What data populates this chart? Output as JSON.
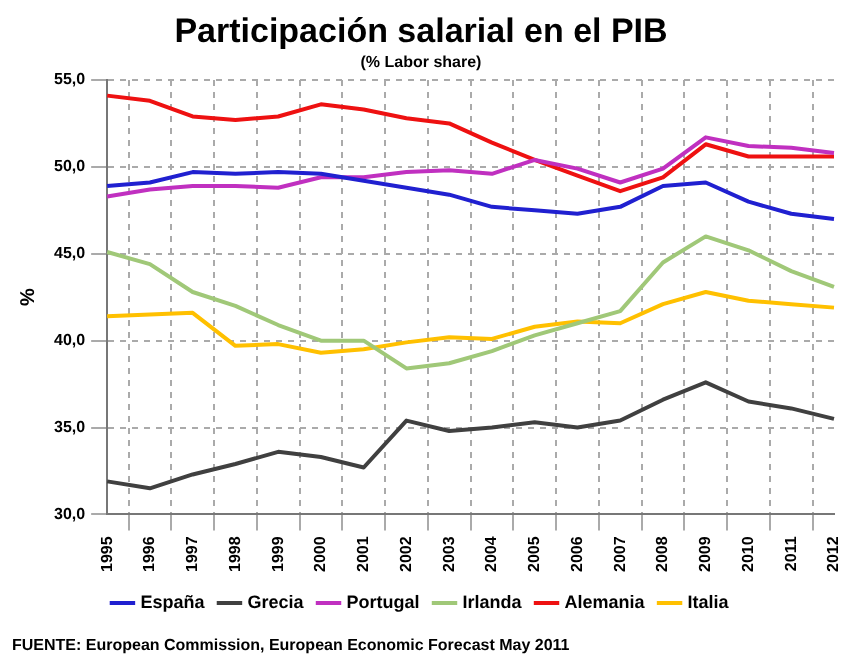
{
  "chart_data": {
    "type": "line",
    "title": "Participación salarial en el PIB",
    "subtitle": "(% Labor share)",
    "ylabel": "%",
    "categories": [
      "1995",
      "1996",
      "1997",
      "1998",
      "1999",
      "2000",
      "2001",
      "2002",
      "2003",
      "2004",
      "2005",
      "2006",
      "2007",
      "2008",
      "2009",
      "2010",
      "2011",
      "2012"
    ],
    "series": [
      {
        "name": "España",
        "color": "#2020d0",
        "values": [
          48.9,
          49.1,
          49.7,
          49.6,
          49.7,
          49.6,
          49.2,
          48.8,
          48.4,
          47.7,
          47.5,
          47.3,
          47.7,
          48.9,
          49.1,
          48.0,
          47.3,
          47.0
        ]
      },
      {
        "name": "Grecia",
        "color": "#404040",
        "values": [
          31.9,
          31.5,
          32.3,
          32.9,
          33.6,
          33.3,
          32.7,
          35.4,
          34.8,
          35.0,
          35.3,
          35.0,
          35.4,
          36.6,
          37.6,
          36.5,
          36.1,
          35.5
        ]
      },
      {
        "name": "Portugal",
        "color": "#c030c0",
        "values": [
          48.3,
          48.7,
          48.9,
          48.9,
          48.8,
          49.4,
          49.4,
          49.7,
          49.8,
          49.6,
          50.4,
          49.9,
          49.1,
          49.9,
          51.7,
          51.2,
          51.1,
          50.8
        ]
      },
      {
        "name": "Irlanda",
        "color": "#a0c878",
        "values": [
          45.1,
          44.4,
          42.8,
          42.0,
          40.9,
          40.0,
          40.0,
          38.4,
          38.7,
          39.4,
          40.3,
          41.0,
          41.7,
          44.5,
          46.0,
          45.2,
          44.0,
          43.1
        ]
      },
      {
        "name": "Alemania",
        "color": "#ee1111",
        "values": [
          54.1,
          53.8,
          52.9,
          52.7,
          52.9,
          53.6,
          53.3,
          52.8,
          52.5,
          51.4,
          50.4,
          49.5,
          48.6,
          49.4,
          51.3,
          50.6,
          50.6,
          50.6
        ]
      },
      {
        "name": "Italia",
        "color": "#ffc000",
        "values": [
          41.4,
          41.5,
          41.6,
          39.7,
          39.8,
          39.3,
          39.5,
          39.9,
          40.2,
          40.1,
          40.8,
          41.1,
          41.0,
          42.1,
          42.8,
          42.3,
          42.1,
          41.9
        ]
      }
    ],
    "ylim": [
      30,
      55
    ],
    "yticks": [
      {
        "value": 30,
        "label": "30,0"
      },
      {
        "value": 35,
        "label": "35,0"
      },
      {
        "value": 40,
        "label": "40,0"
      },
      {
        "value": 45,
        "label": "45,0"
      },
      {
        "value": 50,
        "label": "50,0"
      },
      {
        "value": 55,
        "label": "55,0"
      }
    ],
    "grid": true,
    "legend": "bottom",
    "marker": "none",
    "line_style": "solid",
    "annotations": [
      "FUENTE: European Commission, European Economic Forecast May 2011"
    ]
  }
}
